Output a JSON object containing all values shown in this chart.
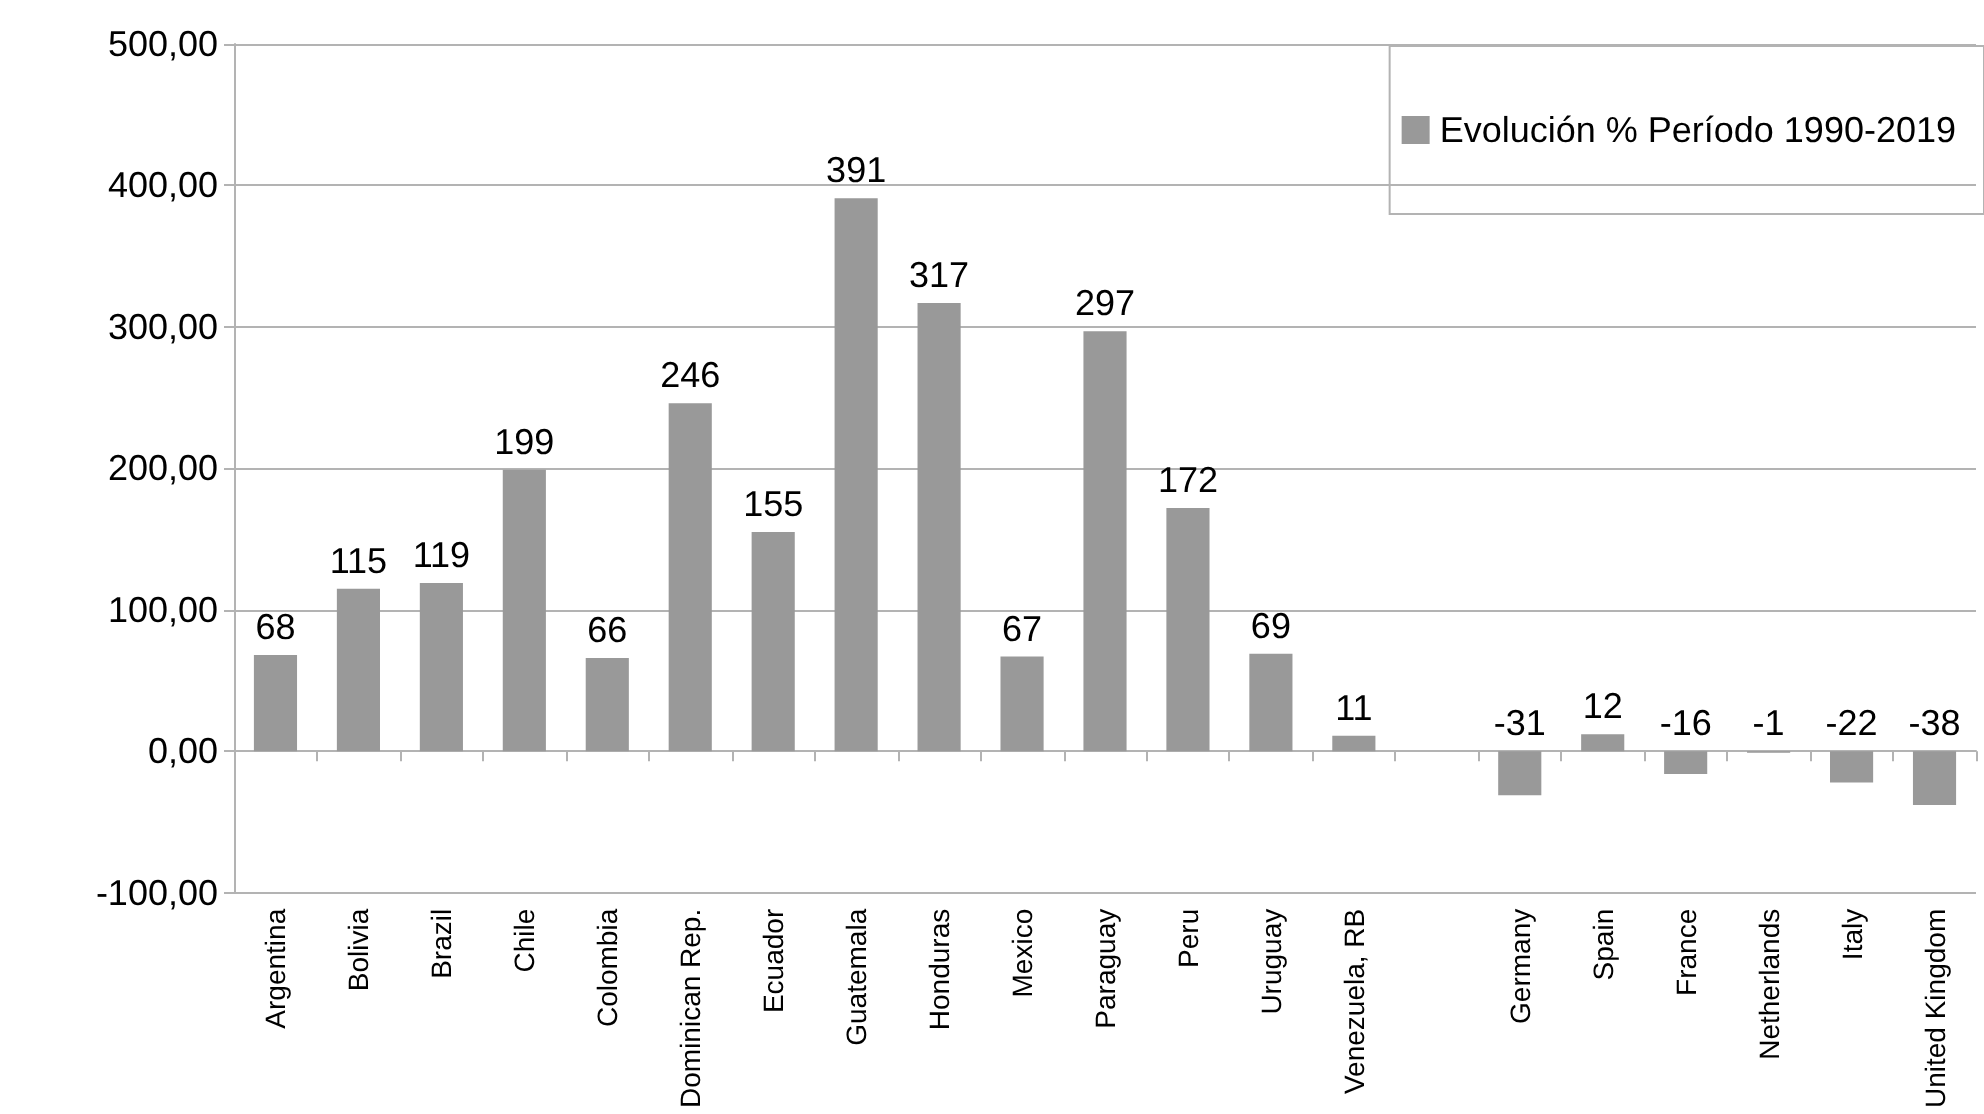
{
  "chart_data": {
    "type": "bar",
    "categories": [
      "Argentina",
      "Bolivia",
      "Brazil",
      "Chile",
      "Colombia",
      "Dominican Rep.",
      "Ecuador",
      "Guatemala",
      "Honduras",
      "Mexico",
      "Paraguay",
      "Peru",
      "Uruguay",
      "Venezuela, RB",
      null,
      "Germany",
      "Spain",
      "France",
      "Netherlands",
      "Italy",
      "United Kingdom"
    ],
    "series": [
      {
        "name": "Evolución % Período 1990-2019",
        "color": "#999999",
        "values": [
          68,
          115,
          119,
          199,
          66,
          246,
          155,
          391,
          317,
          67,
          297,
          172,
          69,
          11,
          null,
          -31,
          12,
          -16,
          -1,
          -22,
          -38
        ]
      }
    ],
    "ylim": [
      -100,
      500
    ],
    "yticks": [
      {
        "value": -100,
        "label": "-100,00"
      },
      {
        "value": 0,
        "label": "0,00"
      },
      {
        "value": 100,
        "label": "100,00"
      },
      {
        "value": 200,
        "label": "200,00"
      },
      {
        "value": 300,
        "label": "300,00"
      },
      {
        "value": 400,
        "label": "400,00"
      },
      {
        "value": 500,
        "label": "500,00"
      }
    ],
    "grid": "y",
    "legend": "top right",
    "data_labels": true
  }
}
